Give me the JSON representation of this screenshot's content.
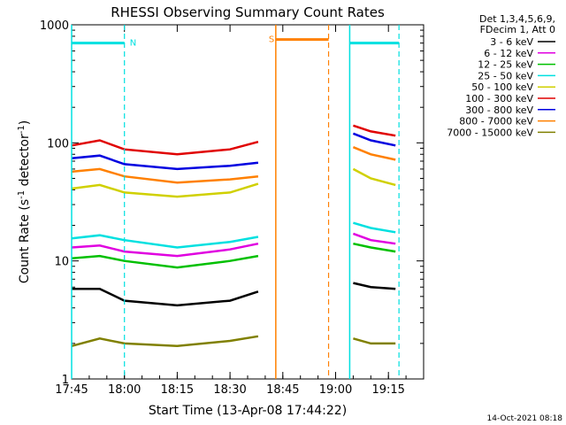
{
  "chart_data": {
    "type": "line",
    "title": "RHESSI Observing Summary Count Rates",
    "xlabel": "Start Time (13-Apr-08 17:44:22)",
    "ylabel_main": "Count Rate (s",
    "ylabel_sup1": "-1",
    "ylabel_mid": " detector",
    "ylabel_sup2": "-1",
    "ylabel_end": ")",
    "y_scale": "log",
    "ylim": [
      1,
      1000
    ],
    "xlim_minutes": [
      0,
      100
    ],
    "x_ticks": [
      {
        "label": "17:45",
        "t": 0
      },
      {
        "label": "18:00",
        "t": 15
      },
      {
        "label": "18:15",
        "t": 30
      },
      {
        "label": "18:30",
        "t": 45
      },
      {
        "label": "18:45",
        "t": 60
      },
      {
        "label": "19:00",
        "t": 75
      },
      {
        "label": "19:15",
        "t": 90
      }
    ],
    "y_ticks": [
      {
        "label": "1",
        "v": 1
      },
      {
        "label": "10",
        "v": 10
      },
      {
        "label": "100",
        "v": 100
      },
      {
        "label": "1000",
        "v": 1000
      }
    ],
    "legend_header": [
      "Det 1,3,4,5,6,9,",
      "FDecim 1, Att 0"
    ],
    "series": [
      {
        "name": "3 - 6 keV",
        "color": "#000000",
        "values": [
          [
            0,
            5.8
          ],
          [
            8,
            5.8
          ],
          [
            15,
            4.6
          ],
          [
            30,
            4.2
          ],
          [
            45,
            4.6
          ],
          [
            53,
            5.5
          ],
          [
            75,
            null
          ],
          [
            80,
            6.5
          ],
          [
            85,
            6.0
          ],
          [
            92,
            5.8
          ]
        ]
      },
      {
        "name": "6 - 12 keV",
        "color": "#e000e0",
        "values": [
          [
            0,
            13
          ],
          [
            8,
            13.5
          ],
          [
            15,
            12
          ],
          [
            30,
            11
          ],
          [
            45,
            12.5
          ],
          [
            53,
            14
          ],
          [
            75,
            null
          ],
          [
            80,
            17
          ],
          [
            85,
            15
          ],
          [
            92,
            14
          ]
        ]
      },
      {
        "name": "12 - 25 keV",
        "color": "#00c000",
        "values": [
          [
            0,
            10.5
          ],
          [
            8,
            11
          ],
          [
            15,
            10
          ],
          [
            30,
            8.8
          ],
          [
            45,
            10
          ],
          [
            53,
            11
          ],
          [
            75,
            null
          ],
          [
            80,
            14
          ],
          [
            85,
            13
          ],
          [
            92,
            12
          ]
        ]
      },
      {
        "name": "25 - 50 keV",
        "color": "#00e0e0",
        "values": [
          [
            0,
            15.5
          ],
          [
            8,
            16.5
          ],
          [
            15,
            15
          ],
          [
            30,
            13
          ],
          [
            45,
            14.5
          ],
          [
            53,
            16
          ],
          [
            75,
            null
          ],
          [
            80,
            21
          ],
          [
            85,
            19
          ],
          [
            92,
            17.5
          ]
        ]
      },
      {
        "name": "50 - 100 keV",
        "color": "#d0d000",
        "values": [
          [
            0,
            41
          ],
          [
            8,
            44
          ],
          [
            15,
            38
          ],
          [
            30,
            35
          ],
          [
            45,
            38
          ],
          [
            53,
            45
          ],
          [
            75,
            null
          ],
          [
            80,
            60
          ],
          [
            85,
            50
          ],
          [
            92,
            44
          ]
        ]
      },
      {
        "name": "100 - 300 keV",
        "color": "#e00000",
        "values": [
          [
            0,
            95
          ],
          [
            8,
            105
          ],
          [
            15,
            88
          ],
          [
            30,
            80
          ],
          [
            45,
            88
          ],
          [
            53,
            102
          ],
          [
            75,
            null
          ],
          [
            80,
            140
          ],
          [
            85,
            125
          ],
          [
            92,
            115
          ]
        ]
      },
      {
        "name": "300 - 800 keV",
        "color": "#0000e0",
        "values": [
          [
            0,
            74
          ],
          [
            8,
            78
          ],
          [
            15,
            66
          ],
          [
            30,
            60
          ],
          [
            45,
            64
          ],
          [
            53,
            68
          ],
          [
            75,
            null
          ],
          [
            80,
            120
          ],
          [
            85,
            105
          ],
          [
            92,
            95
          ]
        ]
      },
      {
        "name": "800 - 7000 keV",
        "color": "#ff8000",
        "values": [
          [
            0,
            57
          ],
          [
            8,
            60
          ],
          [
            15,
            52
          ],
          [
            30,
            46
          ],
          [
            45,
            49
          ],
          [
            53,
            52
          ],
          [
            75,
            null
          ],
          [
            80,
            92
          ],
          [
            85,
            80
          ],
          [
            92,
            72
          ]
        ]
      },
      {
        "name": "7000 - 15000 keV",
        "color": "#808000",
        "values": [
          [
            0,
            1.9
          ],
          [
            8,
            2.2
          ],
          [
            15,
            2.0
          ],
          [
            30,
            1.9
          ],
          [
            45,
            2.1
          ],
          [
            53,
            2.3
          ],
          [
            75,
            null
          ],
          [
            80,
            2.2
          ],
          [
            85,
            2.0
          ],
          [
            92,
            2.0
          ]
        ]
      }
    ],
    "annotations": [
      {
        "label": "N",
        "color": "#00e0e0",
        "t_start": 0,
        "t_end": 15,
        "level": 700
      },
      {
        "label": "S",
        "color": "#ff8000",
        "t_start": 58,
        "t_end": 73,
        "level": 750
      },
      {
        "label": "",
        "color": "#00e0e0",
        "t_start": 79,
        "t_end": 93,
        "level": 700
      }
    ],
    "footer_date": "14-Oct-2021 08:18"
  }
}
